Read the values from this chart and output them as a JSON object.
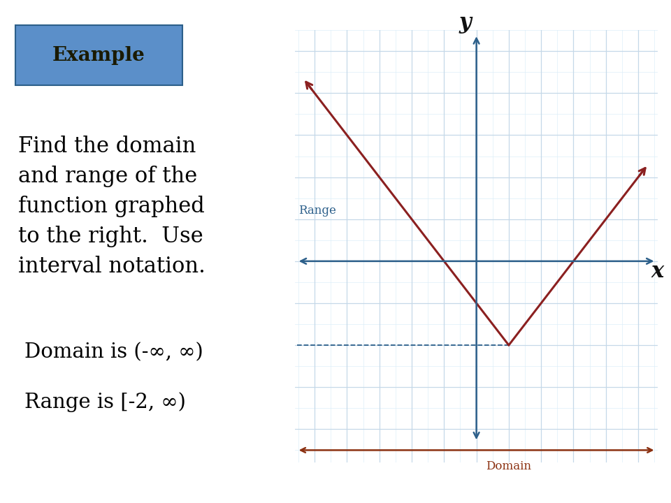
{
  "background_color": "#ffffff",
  "example_box_color": "#5b8fc9",
  "example_box_text": "Example",
  "example_box_text_color": "#1a1a00",
  "problem_text": "Find the domain\nand range of the\nfunction graphed\nto the right.  Use\ninterval notation.",
  "problem_text_color": "#000000",
  "domain_answer": "Domain is (-∞, ∞)",
  "range_answer": "Range is [-2, ∞)",
  "answer_color": "#000000",
  "axis_color": "#2c5f8a",
  "grid_color": "#c5d8e8",
  "grid_minor_color": "#ddeef8",
  "function_color": "#8b2020",
  "range_line_color": "#2c5f8a",
  "domain_arrow_color": "#8b3010",
  "range_label_color": "#2c5f8a",
  "domain_label_color": "#8b3010",
  "vertex_x": 1.0,
  "vertex_y": -2.0,
  "x_range_min": -5,
  "x_range_max": 5,
  "y_range_min": -4,
  "y_range_max": 5
}
